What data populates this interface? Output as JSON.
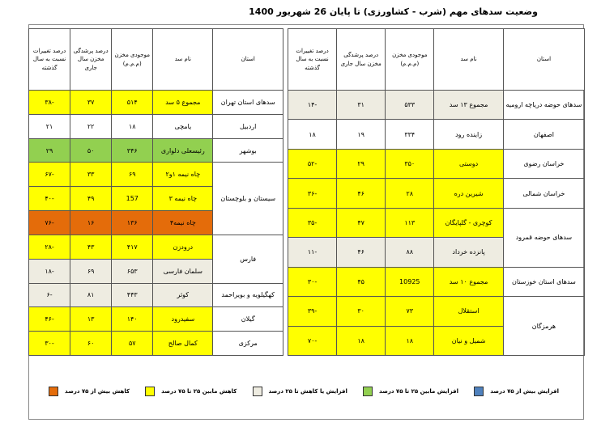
{
  "title": "وضعیت سدهای مهم (شرب - کشاورزی) تا پایان 26 شهریور 1400",
  "tables": [
    {
      "headers": [
        "استان",
        "نام سد",
        "موجودی مخزن (م.م.م)",
        "درصد پرشدگی مخزن سال جاری",
        "درصد تغییرات نسبت به سال گذشته"
      ],
      "groups": [
        {
          "province": "سدهای حوضه دریاچه ارومیه",
          "rows": [
            {
              "dam": "مجموع ۱۳ سد",
              "storage": "۵۳۳",
              "fill": "۳۱",
              "change": "-۱۴",
              "color": "#eeece1"
            }
          ]
        },
        {
          "province": "اصفهان",
          "rows": [
            {
              "dam": "زاینده رود",
              "storage": "۳۳۴",
              "fill": "۱۹",
              "change": "۱۸",
              "color": "#ffffff"
            }
          ]
        },
        {
          "province": "خراسان رضوی",
          "rows": [
            {
              "dam": "دوستی",
              "storage": "۳۵۰",
              "fill": "۲۹",
              "change": "-۵۲",
              "color": "#ffff00"
            }
          ]
        },
        {
          "province": "خراسان شمالی",
          "rows": [
            {
              "dam": "شیرین دره",
              "storage": "۲۸",
              "fill": "۴۶",
              "change": "-۳۶",
              "color": "#ffff00"
            }
          ]
        },
        {
          "province": "سدهای حوضه قمرود",
          "rows": [
            {
              "dam": "کوچری - گلپایگان",
              "storage": "۱۱۳",
              "fill": "۴۷",
              "change": "-۳۵",
              "color": "#ffff00"
            },
            {
              "dam": "پانزده خرداد",
              "storage": "۸۸",
              "fill": "۴۶",
              "change": "-۱۱",
              "color": "#eeece1"
            }
          ]
        },
        {
          "province": "سدهای استان خوزستان",
          "rows": [
            {
              "dam": "مجموع ۱۰ سد",
              "storage": "10925",
              "fill": "۴۵",
              "change": "-۳۰",
              "color": "#ffff00"
            }
          ]
        },
        {
          "province": "هرمزگان",
          "rows": [
            {
              "dam": "استقلال",
              "storage": "۷۳",
              "fill": "۳۰",
              "change": "-۳۹",
              "color": "#ffff00"
            },
            {
              "dam": "شمیل و نیان",
              "storage": "۱۸",
              "fill": "۱۸",
              "change": "-۷۰",
              "color": "#ffff00"
            }
          ]
        }
      ]
    },
    {
      "headers": [
        "استان",
        "نام سد",
        "موجودی مخزن (م.م.م)",
        "درصد پرشدگی مخزن سال جاری",
        "درصد تغییرات نسبت به سال گذشته"
      ],
      "groups": [
        {
          "province": "سدهای استان تهران",
          "rows": [
            {
              "dam": "مجموع ۵ سد",
              "storage": "۵۱۴",
              "fill": "۳۷",
              "change": "-۳۸",
              "color": "#ffff00"
            }
          ]
        },
        {
          "province": "اردبیل",
          "rows": [
            {
              "dam": "یامچی",
              "storage": "۱۸",
              "fill": "۲۲",
              "change": "۲۱",
              "color": "#ffffff"
            }
          ]
        },
        {
          "province": "بوشهر",
          "rows": [
            {
              "dam": "رئیسعلی دلواری",
              "storage": "۳۴۶",
              "fill": "۵۰",
              "change": "۲۹",
              "color": "#92d050"
            }
          ]
        },
        {
          "province": "سیستان و بلوچستان",
          "rows": [
            {
              "dam": "چاه نیمه ۱و۲",
              "storage": "۶۹",
              "fill": "۳۳",
              "change": "-۶۷",
              "color": "#ffff00"
            },
            {
              "dam": "چاه نیمه ۳",
              "storage": "157",
              "fill": "۴۹",
              "change": "-۴۰",
              "color": "#ffff00"
            },
            {
              "dam": "چاه نیمه۴",
              "storage": "۱۳۶",
              "fill": "۱۶",
              "change": "-۷۶",
              "color": "#e46c0a"
            }
          ]
        },
        {
          "province": "فارس",
          "rows": [
            {
              "dam": "درودزن",
              "storage": "۴۱۷",
              "fill": "۴۳",
              "change": "-۲۸",
              "color": "#ffff00"
            },
            {
              "dam": "سلمان فارسی",
              "storage": "۶۵۳",
              "fill": "۶۹",
              "change": "-۱۸",
              "color": "#eeece1"
            }
          ]
        },
        {
          "province": "کهگیلویه و بویراحمد",
          "rows": [
            {
              "dam": "کوثر",
              "storage": "۴۴۳",
              "fill": "۸۱",
              "change": "-۶",
              "color": "#eeece1"
            }
          ]
        },
        {
          "province": "گیلان",
          "rows": [
            {
              "dam": "سفیدرود",
              "storage": "۱۴۰",
              "fill": "۱۳",
              "change": "-۴۶",
              "color": "#ffff00"
            }
          ]
        },
        {
          "province": "مرکزی",
          "rows": [
            {
              "dam": "کمال صالح",
              "storage": "۵۷",
              "fill": "۶۰",
              "change": "-۳۰",
              "color": "#ffff00"
            }
          ]
        }
      ]
    }
  ],
  "legend": [
    {
      "label": "افزایش بیش از ۷۵ درصد",
      "color": "#4f81bd"
    },
    {
      "label": "افزایش مابین ۲۵ تا ۷۵ درصد",
      "color": "#92d050"
    },
    {
      "label": "افزایش یا کاهش تا ۲۵ درصد",
      "color": "#eeece1"
    },
    {
      "label": "کاهش مابین ۲۵ تا ۷۵ درصد",
      "color": "#ffff00"
    },
    {
      "label": "کاهش بیش از ۷۵ درصد",
      "color": "#e46c0a"
    }
  ]
}
